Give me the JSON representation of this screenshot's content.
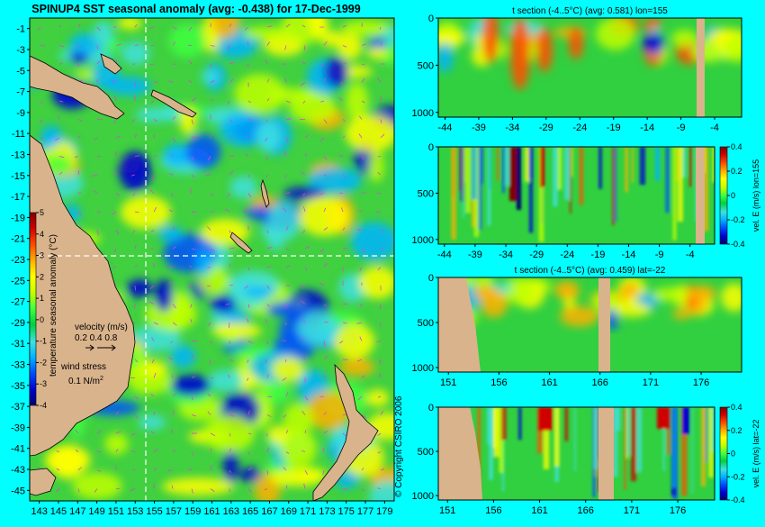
{
  "colors": {
    "background": "#00ffff",
    "land": "#d9b38c",
    "colormap": [
      "#00006e",
      "#0000d0",
      "#0050ff",
      "#00b4ff",
      "#40e0e0",
      "#00d040",
      "#40ff40",
      "#c0ff00",
      "#ffff00",
      "#ffb000",
      "#ff5000",
      "#d00000",
      "#800000"
    ]
  },
  "main_map": {
    "title": "SPINUP4 SST seasonal anomaly (avg: -0.438) for 17-Dec-1999",
    "lat_ticks": [
      "-1",
      "-3",
      "-5",
      "-7",
      "-9",
      "-11",
      "-13",
      "-15",
      "-17",
      "-19",
      "-21",
      "-23",
      "-25",
      "-27",
      "-29",
      "-31",
      "-33",
      "-35",
      "-37",
      "-39",
      "-41",
      "-43",
      "-45"
    ],
    "lon_ticks": [
      "143",
      "145",
      "147",
      "149",
      "151",
      "153",
      "155",
      "157",
      "159",
      "161",
      "163",
      "165",
      "167",
      "169",
      "171",
      "173",
      "175",
      "177",
      "179"
    ],
    "colorbar": {
      "label": "temperature seasonal anomaly (°C)",
      "ticks": [
        "5",
        "4",
        "3",
        "2",
        "1",
        "0",
        "-1",
        "-2",
        "-3",
        "-4"
      ]
    },
    "velocity_legend": {
      "label": "velocity (m/s)",
      "values": "0.2 0.4 0.8"
    },
    "wind_legend": {
      "label": "wind stress",
      "value": "0.1 N/m",
      "superscript": "2"
    },
    "copyright": "© Copyright CSIRO 2006"
  },
  "panels": [
    {
      "title": "t section (-4..5°C) (avg: 0.581) lon=155",
      "x_ticks": [
        "-44",
        "-39",
        "-34",
        "-29",
        "-24",
        "-19",
        "-14",
        "-9",
        "-4"
      ],
      "y_ticks": [
        "0",
        "500",
        "1000"
      ]
    },
    {
      "title": "",
      "x_ticks": [
        "-44",
        "-39",
        "-34",
        "-29",
        "-24",
        "-19",
        "-14",
        "-9",
        "-4"
      ],
      "y_ticks": [
        "0",
        "500",
        "1000"
      ],
      "colorbar_label": "vel. E (m/s) lon=155",
      "colorbar_ticks": [
        "0.4",
        "0.2",
        "0",
        "-0.2",
        "-0.4"
      ]
    },
    {
      "title": "t section (-4..5°C) (avg: 0.459) lat=-22",
      "x_ticks": [
        "151",
        "156",
        "161",
        "166",
        "171",
        "176"
      ],
      "y_ticks": [
        "0",
        "500",
        "1000"
      ]
    },
    {
      "title": "",
      "x_ticks": [
        "151",
        "156",
        "161",
        "166",
        "171",
        "176"
      ],
      "y_ticks": [
        "0",
        "500",
        "1000"
      ],
      "colorbar_label": "vel. E (m/s) lat=-22",
      "colorbar_ticks": [
        "0.4",
        "0.2",
        "0",
        "-0.2",
        "-0.4"
      ]
    }
  ],
  "chart_data": [
    {
      "type": "heatmap",
      "title": "SPINUP4 SST seasonal anomaly (avg: -0.438) for 17-Dec-1999",
      "xlabel": "",
      "ylabel": "",
      "x_range": [
        142,
        180
      ],
      "y_range": [
        -46,
        0
      ],
      "value_range": [
        -4,
        5
      ],
      "units": "°C",
      "average": -0.438,
      "section_lines": {
        "lon": 155,
        "lat": -22
      }
    },
    {
      "type": "heatmap",
      "title": "t section (-4..5°C) (avg: 0.581) lon=155",
      "x_range": [
        -45,
        0
      ],
      "y_range": [
        0,
        1050
      ],
      "value_range": [
        -4,
        5
      ],
      "average": 0.581
    },
    {
      "type": "heatmap",
      "title": "",
      "colorbar_label": "vel. E (m/s) lon=155",
      "x_range": [
        -45,
        0
      ],
      "y_range": [
        0,
        1050
      ],
      "value_range": [
        -0.4,
        0.4
      ]
    },
    {
      "type": "heatmap",
      "title": "t section (-4..5°C) (avg: 0.459) lat=-22",
      "x_range": [
        150,
        180
      ],
      "y_range": [
        0,
        1050
      ],
      "value_range": [
        -4,
        5
      ],
      "average": 0.459
    },
    {
      "type": "heatmap",
      "title": "",
      "colorbar_label": "vel. E (m/s) lat=-22",
      "x_range": [
        150,
        180
      ],
      "y_range": [
        0,
        1050
      ],
      "value_range": [
        -0.4,
        0.4
      ]
    }
  ]
}
